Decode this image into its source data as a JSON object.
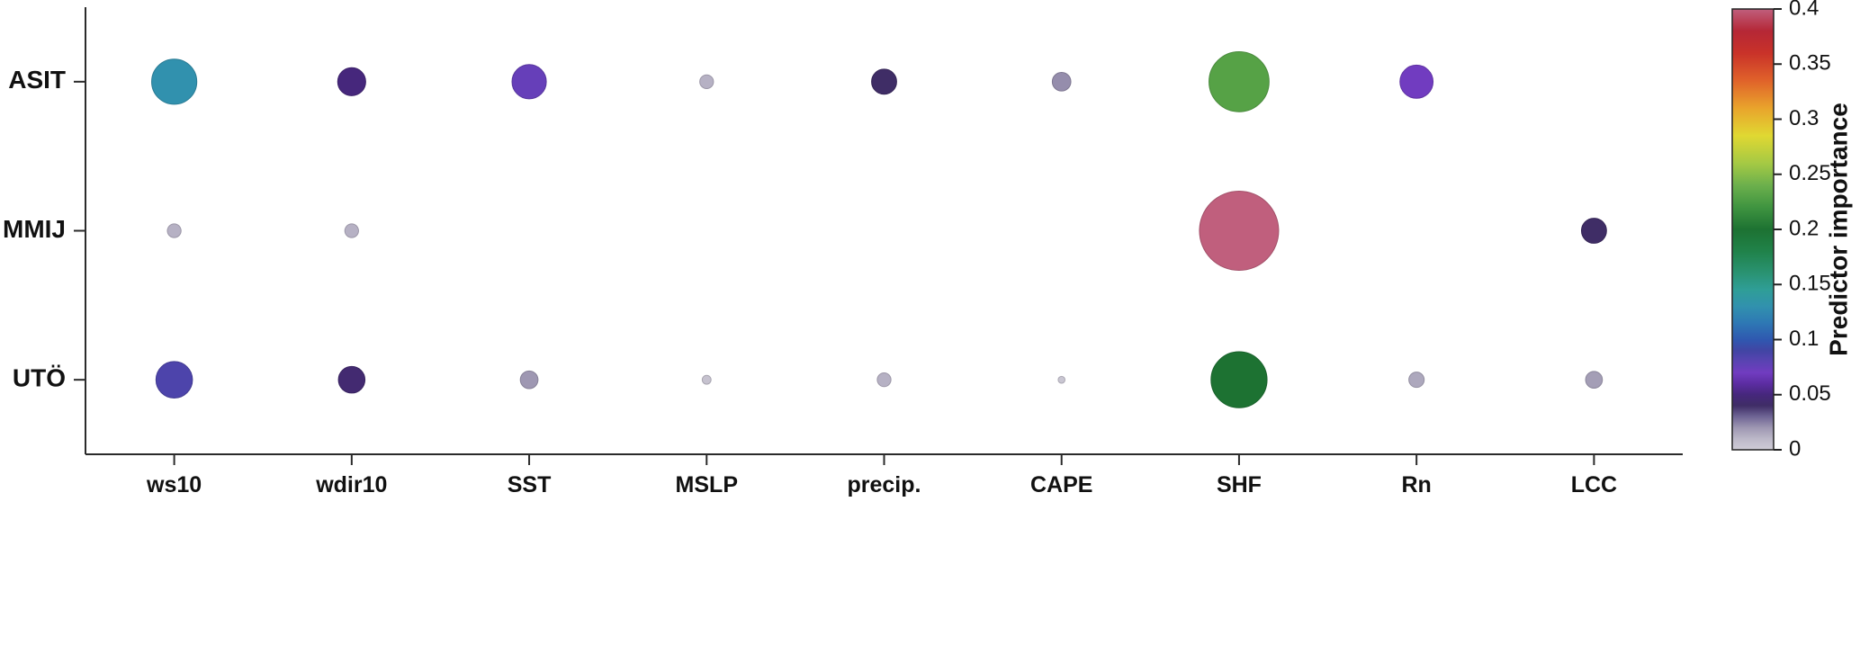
{
  "figure": {
    "background": "#ffffff",
    "axis_color": "#2b2b2b",
    "text_color": "#111111"
  },
  "chart_data": {
    "type": "scatter",
    "subtype": "bubble-matrix",
    "title": "",
    "xlabel": "",
    "ylabel": "",
    "grid": false,
    "legend_position": "right-colorbar",
    "x_categories": [
      "ws10",
      "wdir10",
      "SST",
      "MSLP",
      "precip.",
      "CAPE",
      "SHF",
      "Rn",
      "LCC"
    ],
    "y_categories": [
      "ASIT",
      "MMIJ",
      "UTÖ"
    ],
    "values_note": "predictor importance per station (rows = y_categories, cols = x_categories); null = no marker shown; marker area and color both encode importance",
    "values": [
      [
        0.13,
        0.05,
        0.075,
        0.012,
        0.04,
        0.022,
        0.23,
        0.07,
        null
      ],
      [
        0.012,
        0.012,
        null,
        null,
        null,
        null,
        0.4,
        null,
        0.04
      ],
      [
        0.085,
        0.045,
        0.02,
        0.005,
        0.012,
        0.003,
        0.2,
        0.015,
        0.018
      ]
    ],
    "size_scale": {
      "vmax": 0.4,
      "max_radius_px": 44
    },
    "colorbar": {
      "label": "Predictor importance",
      "min": 0,
      "max": 0.4,
      "ticks": [
        0,
        0.05,
        0.1,
        0.15,
        0.2,
        0.25,
        0.3,
        0.35,
        0.4
      ],
      "tick_labels": [
        "0",
        "0.05",
        "0.1",
        "0.15",
        "0.2",
        "0.25",
        "0.3",
        "0.35",
        "0.4"
      ]
    },
    "colormap_stops": [
      [
        0.0,
        "#cfccd6"
      ],
      [
        0.01,
        "#bcb8c8"
      ],
      [
        0.02,
        "#9e97b2"
      ],
      [
        0.03,
        "#6f6595"
      ],
      [
        0.04,
        "#3f2d66"
      ],
      [
        0.05,
        "#46277c"
      ],
      [
        0.06,
        "#5c2da2"
      ],
      [
        0.07,
        "#713cc0"
      ],
      [
        0.08,
        "#5a43b2"
      ],
      [
        0.09,
        "#4145a4"
      ],
      [
        0.1,
        "#2f58b0"
      ],
      [
        0.115,
        "#2e78b4"
      ],
      [
        0.13,
        "#3191ae"
      ],
      [
        0.145,
        "#2f9e97"
      ],
      [
        0.16,
        "#2a9373"
      ],
      [
        0.18,
        "#20824a"
      ],
      [
        0.2,
        "#1d7232"
      ],
      [
        0.22,
        "#3f9440"
      ],
      [
        0.24,
        "#6cb04c"
      ],
      [
        0.26,
        "#a5c944"
      ],
      [
        0.285,
        "#e0d832"
      ],
      [
        0.31,
        "#e9a42c"
      ],
      [
        0.335,
        "#e0622a"
      ],
      [
        0.36,
        "#c93229"
      ],
      [
        0.38,
        "#b52736"
      ],
      [
        0.4,
        "#c05f7d"
      ]
    ]
  }
}
